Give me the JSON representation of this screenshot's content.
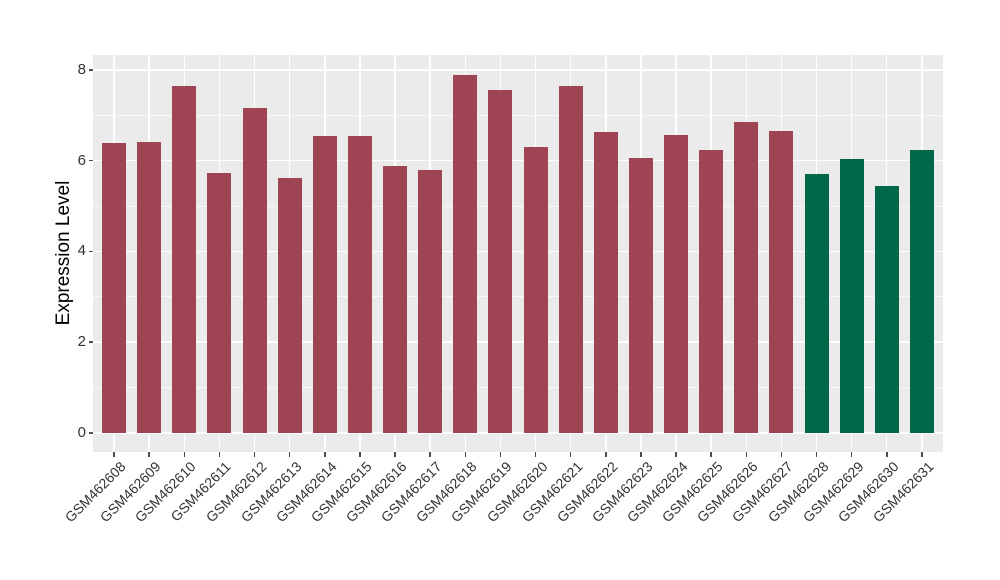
{
  "figure": {
    "background": "#FFFFFF",
    "panel_background": "#EBEBEB",
    "gridline_color": "#FFFFFF",
    "axis_text_color": "#333333",
    "tick_mark_color": "#4D4D4D"
  },
  "chart_data": {
    "type": "bar",
    "title": "",
    "xlabel": "",
    "ylabel": "Expression Level",
    "legend": "none",
    "grid": true,
    "ylim": [
      -0.42,
      8.33
    ],
    "yticks": [
      0,
      2,
      4,
      6,
      8
    ],
    "yticks_minor": [
      1,
      3,
      5,
      7
    ],
    "categories": [
      "GSM462608",
      "GSM462609",
      "GSM462610",
      "GSM462611",
      "GSM462612",
      "GSM462613",
      "GSM462614",
      "GSM462615",
      "GSM462616",
      "GSM462617",
      "GSM462618",
      "GSM462619",
      "GSM462620",
      "GSM462621",
      "GSM462622",
      "GSM462623",
      "GSM462624",
      "GSM462625",
      "GSM462626",
      "GSM462627",
      "GSM462628",
      "GSM462629",
      "GSM462630",
      "GSM462631"
    ],
    "values": [
      6.4,
      6.42,
      7.64,
      5.72,
      7.17,
      5.62,
      6.54,
      6.54,
      5.88,
      5.79,
      7.89,
      7.55,
      6.31,
      7.64,
      6.63,
      6.05,
      6.56,
      6.24,
      6.85,
      6.66,
      5.7,
      6.03,
      5.44,
      6.24
    ],
    "groups": [
      "red",
      "red",
      "red",
      "red",
      "red",
      "red",
      "red",
      "red",
      "red",
      "red",
      "red",
      "red",
      "red",
      "red",
      "red",
      "red",
      "red",
      "red",
      "red",
      "red",
      "green",
      "green",
      "green",
      "green"
    ],
    "group_colors": {
      "red": "#9E4452",
      "green": "#006848"
    }
  }
}
